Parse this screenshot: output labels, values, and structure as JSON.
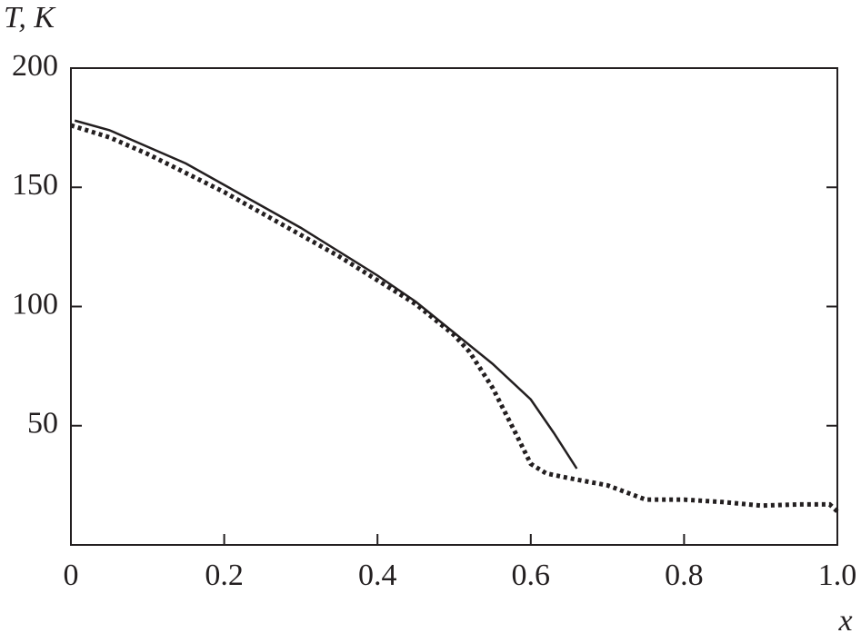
{
  "chart_data": {
    "type": "line",
    "xlabel": "x",
    "ylabel": "T, K",
    "xlim": [
      0,
      1
    ],
    "ylim": [
      0,
      200
    ],
    "xticks": [
      0,
      0.2,
      0.4,
      0.6,
      0.8,
      {
        "value": 1,
        "label": "1.0"
      }
    ],
    "yticks": [
      50,
      100,
      150,
      200
    ],
    "series": [
      {
        "color": "#231f20",
        "style": "solid",
        "x": [
          0.005,
          0.05,
          0.1,
          0.15,
          0.2,
          0.25,
          0.3,
          0.35,
          0.4,
          0.45,
          0.5,
          0.55,
          0.6,
          0.63,
          0.66
        ],
        "values": [
          178,
          174,
          167,
          160,
          151,
          142,
          133,
          123,
          113,
          102,
          89,
          76,
          61,
          47,
          32
        ]
      },
      {
        "color": "#231f20",
        "style": "dotted",
        "x": [
          0,
          0.05,
          0.1,
          0.15,
          0.2,
          0.25,
          0.3,
          0.35,
          0.4,
          0.45,
          0.5,
          0.52,
          0.55,
          0.58,
          0.6,
          0.62,
          0.65,
          0.7,
          0.75,
          0.8,
          0.85,
          0.9,
          0.95,
          0.99,
          1.0
        ],
        "values": [
          176,
          171,
          164,
          156,
          148,
          139,
          130,
          121,
          111,
          101,
          88,
          81,
          66,
          47,
          34,
          30,
          28,
          25,
          19,
          19,
          18,
          16.5,
          17,
          17,
          14
        ]
      }
    ]
  }
}
